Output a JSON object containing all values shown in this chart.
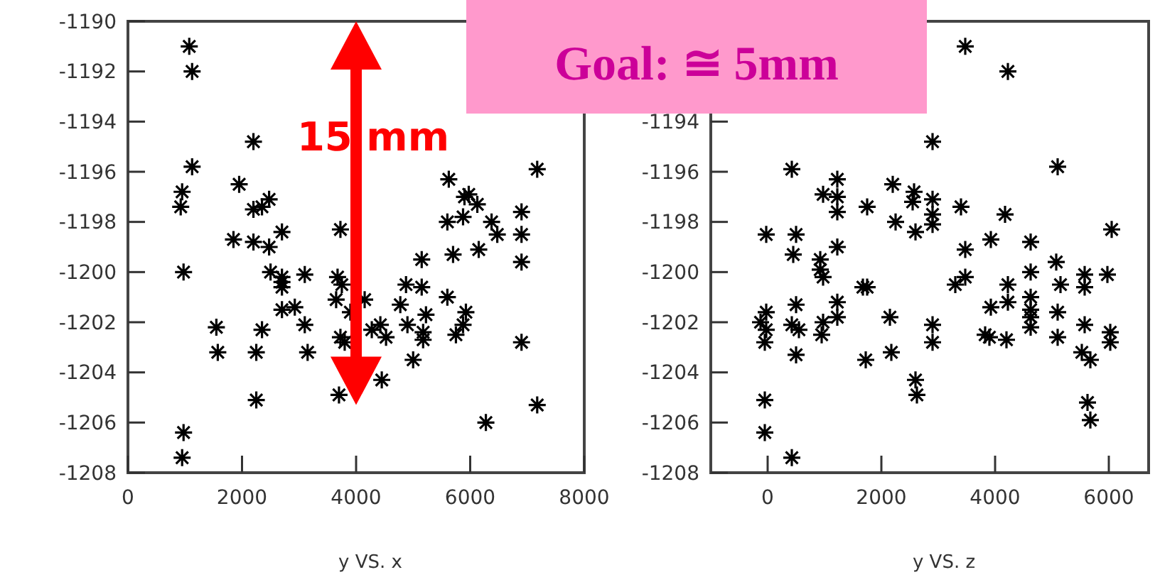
{
  "chart_data": [
    {
      "type": "scatter",
      "xlabel": "y VS. x",
      "xlim": [
        0,
        8000
      ],
      "ylim": [
        -1208,
        -1190
      ],
      "xticks": [
        0,
        2000,
        4000,
        6000,
        8000
      ],
      "yticks": [
        -1208,
        -1206,
        -1204,
        -1202,
        -1200,
        -1198,
        -1196,
        -1194,
        -1192,
        -1190
      ],
      "marker": "cross",
      "grid": false,
      "annotations": [
        "15 mm",
        "Goal: ≅ 5mm"
      ],
      "series": [
        {
          "color": "#000000",
          "x": [
            1075,
            1125,
            2200,
            1125,
            950,
            925,
            1950,
            2475,
            2350,
            2200,
            2700,
            3725,
            1850,
            2200,
            2475,
            975,
            2500,
            2700,
            2700,
            2700,
            3100,
            3675,
            3750,
            3650,
            2925,
            2700,
            3900,
            4150,
            1550,
            2350,
            3100,
            4425,
            4275,
            4525,
            3725,
            3800,
            1575,
            2250,
            3150,
            4450,
            3700,
            2250,
            975,
            950,
            7175,
            5625,
            5900,
            5975,
            6125,
            5875,
            5600,
            6375,
            6475,
            6900,
            6900,
            6900,
            5150,
            5700,
            6150,
            4875,
            5150,
            5600,
            4775,
            5925,
            5225,
            5875,
            4900,
            5750,
            5175,
            5175,
            6900,
            5000,
            7175,
            6275
          ],
          "values": [
            -1191.0,
            -1192.0,
            -1194.8,
            -1195.8,
            -1196.8,
            -1197.4,
            -1196.5,
            -1197.1,
            -1197.4,
            -1197.5,
            -1198.4,
            -1198.3,
            -1198.7,
            -1198.8,
            -1199.0,
            -1200.0,
            -1200.0,
            -1200.2,
            -1200.4,
            -1200.6,
            -1200.1,
            -1200.2,
            -1200.5,
            -1201.1,
            -1201.4,
            -1201.5,
            -1201.6,
            -1201.1,
            -1202.2,
            -1202.3,
            -1202.1,
            -1202.1,
            -1202.3,
            -1202.6,
            -1202.6,
            -1202.8,
            -1203.2,
            -1203.2,
            -1203.2,
            -1204.3,
            -1204.9,
            -1205.1,
            -1206.4,
            -1207.4,
            -1195.9,
            -1196.3,
            -1197.0,
            -1196.9,
            -1197.3,
            -1197.8,
            -1198.0,
            -1198.0,
            -1198.5,
            -1197.6,
            -1198.5,
            -1199.6,
            -1199.5,
            -1199.3,
            -1199.1,
            -1200.5,
            -1200.6,
            -1201.0,
            -1201.3,
            -1201.6,
            -1201.7,
            -1202.1,
            -1202.1,
            -1202.5,
            -1202.4,
            -1202.7,
            -1202.8,
            -1203.5,
            -1205.3,
            -1206.0
          ]
        }
      ]
    },
    {
      "type": "scatter",
      "xlabel": "y VS. z",
      "xlim": [
        -1000,
        6700
      ],
      "ylim": [
        -1208,
        -1190
      ],
      "xticks": [
        0,
        2000,
        4000,
        6000
      ],
      "yticks": [
        -1208,
        -1206,
        -1204,
        -1202,
        -1200,
        -1198,
        -1196,
        -1194
      ],
      "marker": "cross",
      "grid": false,
      "series": [
        {
          "color": "#000000",
          "x": [
            425,
            -25,
            500,
            450,
            1225,
            975,
            1225,
            1225,
            1225,
            1750,
            2200,
            2250,
            2575,
            2550,
            2600,
            925,
            925,
            975,
            1675,
            1750,
            -25,
            -125,
            -25,
            -50,
            500,
            425,
            550,
            500,
            975,
            950,
            1225,
            1225,
            2150,
            2175,
            1725,
            2600,
            2625,
            -50,
            -50,
            425,
            3475,
            4225,
            2900,
            5100,
            2900,
            2900,
            2900,
            3400,
            4175,
            6050,
            3475,
            3925,
            4625,
            5075,
            4625,
            5575,
            5975,
            5575,
            5150,
            3300,
            3475,
            4225,
            4225,
            3925,
            4625,
            4625,
            4625,
            4625,
            5100,
            5100,
            5575,
            3825,
            3900,
            4200,
            6025,
            6025,
            5525,
            5675,
            2900,
            2900,
            5625,
            5675
          ],
          "values": [
            -1195.9,
            -1198.5,
            -1198.5,
            -1199.3,
            -1196.3,
            -1196.9,
            -1197.0,
            -1197.6,
            -1199.0,
            -1197.4,
            -1196.5,
            -1198.0,
            -1196.8,
            -1197.2,
            -1198.4,
            -1199.5,
            -1199.9,
            -1200.2,
            -1200.6,
            -1200.6,
            -1201.6,
            -1202.0,
            -1202.3,
            -1202.8,
            -1201.3,
            -1202.1,
            -1202.3,
            -1203.3,
            -1202.0,
            -1202.5,
            -1201.2,
            -1201.8,
            -1201.8,
            -1203.2,
            -1203.5,
            -1204.3,
            -1204.9,
            -1205.1,
            -1206.4,
            -1207.4,
            -1191.0,
            -1192.0,
            -1194.8,
            -1195.8,
            -1197.1,
            -1197.7,
            -1198.1,
            -1197.4,
            -1197.7,
            -1198.3,
            -1199.1,
            -1198.7,
            -1198.8,
            -1199.6,
            -1200.0,
            -1200.1,
            -1200.1,
            -1200.6,
            -1200.5,
            -1200.5,
            -1200.2,
            -1200.5,
            -1201.2,
            -1201.4,
            -1201.0,
            -1201.5,
            -1201.8,
            -1202.2,
            -1201.6,
            -1202.6,
            -1202.1,
            -1202.5,
            -1202.6,
            -1202.7,
            -1202.4,
            -1202.8,
            -1203.2,
            -1203.5,
            -1202.1,
            -1202.8,
            -1205.2,
            -1205.9
          ]
        }
      ]
    }
  ]
}
